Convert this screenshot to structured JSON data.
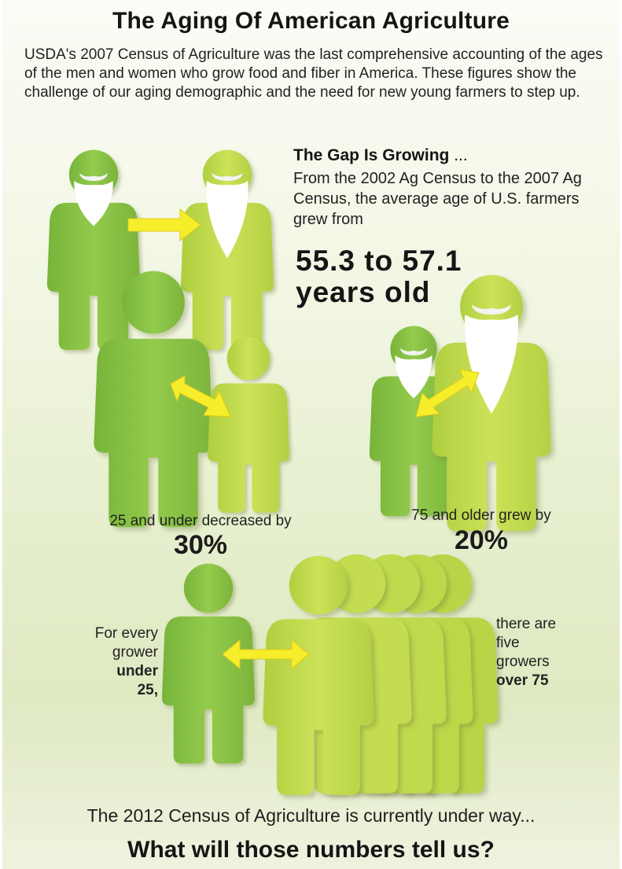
{
  "title": "The Aging Of American Agriculture",
  "intro": "USDA's 2007 Census of Agriculture was the last comprehensive accounting of the ages of the men and women who grow food and fiber in America. These figures show the challenge of our aging demographic and the need for new young farmers to step up.",
  "gap": {
    "heading": "The Gap Is Growing",
    "heading_suffix": "...",
    "body": "From the 2002 Ag Census to the 2007 Ag Census, the average age of U.S. farmers grew from",
    "big_line1": "55.3 to 57.1",
    "big_line2": "years old"
  },
  "under25": {
    "caption": "25 and under decreased by",
    "percent": "30%"
  },
  "over75": {
    "caption": "75 and older grew by",
    "percent": "20%"
  },
  "ratio": {
    "left_line1": "For every",
    "left_line2": "grower",
    "left_bold1": "under",
    "left_bold2": "25,",
    "right_line1": "there are",
    "right_line2": "five",
    "right_line3": "growers",
    "right_bold": "over 75"
  },
  "footer": {
    "line": "The 2012 Census of Agriculture is currently under way...",
    "question": "What will those numbers tell us?"
  },
  "colors": {
    "figure_green": "#8fc84a",
    "figure_light_green": "#c3dc4f",
    "arrow_yellow": "#f6ee2a",
    "beard_white": "#ffffff"
  },
  "icons": [
    "farmer-figure",
    "bearded-farmer-figure",
    "double-arrow-icon",
    "right-arrow-icon"
  ]
}
